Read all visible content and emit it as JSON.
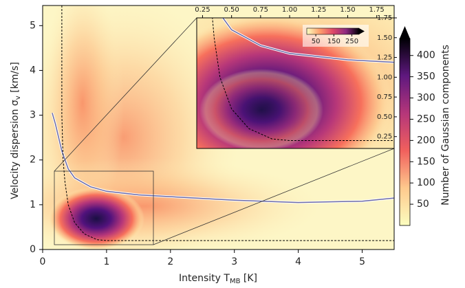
{
  "chart_data": {
    "type": "hist2d",
    "xlabel": {
      "text": "Intensity T",
      "sub": "MB",
      "after": " [K]"
    },
    "ylabel": {
      "text": "Velocity dispersion σ",
      "sub": "v",
      "after": " [km/s]"
    },
    "xlim": [
      0,
      5.5
    ],
    "ylim": [
      0,
      5.45
    ],
    "xticks": [
      0,
      1,
      2,
      3,
      4,
      5
    ],
    "yticks": [
      0,
      1,
      2,
      3,
      4,
      5
    ],
    "lines": [
      {
        "color": "#6b6aa8",
        "style": "solid",
        "x": [
          0.15,
          0.2,
          0.3,
          0.4,
          0.5,
          0.75,
          1,
          1.5,
          2,
          3,
          4,
          5,
          5.5
        ],
        "values": [
          3.05,
          2.8,
          2.2,
          1.8,
          1.6,
          1.4,
          1.3,
          1.22,
          1.18,
          1.1,
          1.05,
          1.08,
          1.15
        ]
      },
      {
        "color": "#000000",
        "style": "dashed",
        "x": [
          0.3,
          0.3,
          0.32,
          0.35,
          0.4,
          0.5,
          0.65,
          0.85,
          1,
          5.5
        ],
        "values": [
          5.45,
          3,
          2,
          1.5,
          1,
          0.6,
          0.35,
          0.22,
          0.2,
          0.2
        ]
      }
    ],
    "colorbar": {
      "label": "Number of Gaussian components",
      "lim": [
        0,
        440
      ],
      "ticks": [
        50,
        100,
        150,
        200,
        250,
        300,
        350,
        400
      ]
    },
    "inset": {
      "xlim": [
        0.2,
        1.9
      ],
      "ylim": [
        0.1,
        1.75
      ],
      "xticks": [
        0.25,
        {
          "value": 0.5,
          "label": "0.50"
        },
        0.75,
        {
          "value": 1,
          "label": "1.00"
        },
        1.25,
        {
          "value": 1.5,
          "label": "1.50"
        },
        1.75
      ],
      "yticks": [
        0.25,
        {
          "value": 0.5,
          "label": "0.50"
        },
        0.75,
        {
          "value": 1,
          "label": "1.00"
        },
        1.25,
        {
          "value": 1.5,
          "label": "1.50"
        },
        1.75
      ],
      "colorbar": {
        "lim": [
          0,
          290
        ],
        "ticks": [
          50,
          150,
          250
        ]
      }
    }
  }
}
